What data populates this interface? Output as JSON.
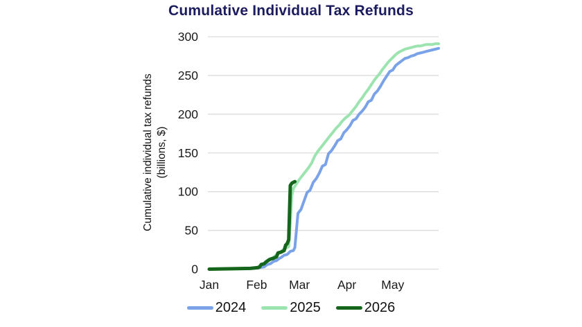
{
  "title": "Cumulative Individual Tax Refunds",
  "colors": {
    "title": "#1b1b5e",
    "grid": "#dcdcdc",
    "axis_text": "#1a1a1a",
    "series_2024": "#7aa2e9",
    "series_2025": "#9be3af",
    "series_2026": "#15661c",
    "background": "#ffffff"
  },
  "y_axis": {
    "label_line1": "Cumulative individual tax refunds",
    "label_line2": "(billions, $)",
    "tick_labels": [
      "0",
      "50",
      "100",
      "150",
      "200",
      "250",
      "300"
    ]
  },
  "x_axis": {
    "tick_labels": [
      "Jan",
      "Feb",
      "Mar",
      "Apr",
      "May"
    ]
  },
  "legend": {
    "items": [
      {
        "label": "2024",
        "color": "#7aa2e9"
      },
      {
        "label": "2025",
        "color": "#9be3af"
      },
      {
        "label": "2026",
        "color": "#15661c"
      }
    ]
  },
  "chart_data": {
    "type": "line",
    "title": "Cumulative Individual Tax Refunds",
    "ylabel": "Cumulative individual tax refunds (billions, $)",
    "xlabel": "",
    "ylim": [
      0,
      300
    ],
    "y_ticks": [
      0,
      50,
      100,
      150,
      200,
      250,
      300
    ],
    "x_unit": "day_of_year",
    "x_total_days": 151,
    "x_ticks": [
      {
        "label": "Jan",
        "day": 1
      },
      {
        "label": "Feb",
        "day": 32
      },
      {
        "label": "Mar",
        "day": 60
      },
      {
        "label": "Apr",
        "day": 91
      },
      {
        "label": "May",
        "day": 121
      }
    ],
    "grid": true,
    "legend_position": "bottom",
    "series": [
      {
        "name": "2024",
        "color": "#7aa2e9",
        "stroke_width": 4,
        "points": [
          [
            1,
            0
          ],
          [
            30,
            1
          ],
          [
            34,
            2
          ],
          [
            37,
            3
          ],
          [
            39,
            6
          ],
          [
            41,
            7
          ],
          [
            43,
            10
          ],
          [
            45,
            11
          ],
          [
            47,
            14
          ],
          [
            48,
            15
          ],
          [
            50,
            18
          ],
          [
            52,
            19
          ],
          [
            54,
            23
          ],
          [
            56,
            24
          ],
          [
            57,
            28
          ],
          [
            58,
            50
          ],
          [
            59,
            72
          ],
          [
            61,
            77
          ],
          [
            63,
            88
          ],
          [
            65,
            99
          ],
          [
            67,
            102
          ],
          [
            69,
            112
          ],
          [
            71,
            117
          ],
          [
            73,
            124
          ],
          [
            75,
            133
          ],
          [
            77,
            135
          ],
          [
            79,
            149
          ],
          [
            81,
            153
          ],
          [
            83,
            159
          ],
          [
            85,
            166
          ],
          [
            87,
            168
          ],
          [
            89,
            176
          ],
          [
            91,
            180
          ],
          [
            93,
            185
          ],
          [
            95,
            192
          ],
          [
            97,
            194
          ],
          [
            99,
            200
          ],
          [
            101,
            204
          ],
          [
            103,
            209
          ],
          [
            105,
            216
          ],
          [
            107,
            218
          ],
          [
            109,
            226
          ],
          [
            111,
            230
          ],
          [
            113,
            236
          ],
          [
            115,
            243
          ],
          [
            117,
            249
          ],
          [
            119,
            255
          ],
          [
            121,
            257
          ],
          [
            123,
            263
          ],
          [
            125,
            266
          ],
          [
            127,
            269
          ],
          [
            129,
            272
          ],
          [
            131,
            273
          ],
          [
            133,
            275
          ],
          [
            135,
            276
          ],
          [
            137,
            278
          ],
          [
            139,
            279
          ],
          [
            141,
            280
          ],
          [
            143,
            281
          ],
          [
            145,
            282
          ],
          [
            147,
            283
          ],
          [
            149,
            284
          ],
          [
            151,
            285
          ]
        ]
      },
      {
        "name": "2025",
        "color": "#9be3af",
        "stroke_width": 4,
        "points": [
          [
            1,
            0
          ],
          [
            28,
            1
          ],
          [
            32,
            2
          ],
          [
            34,
            4
          ],
          [
            36,
            6
          ],
          [
            38,
            9
          ],
          [
            40,
            11
          ],
          [
            42,
            14
          ],
          [
            44,
            17
          ],
          [
            46,
            20
          ],
          [
            48,
            23
          ],
          [
            50,
            26
          ],
          [
            52,
            28
          ],
          [
            53,
            29
          ],
          [
            54,
            60
          ],
          [
            55,
            95
          ],
          [
            56,
            104
          ],
          [
            58,
            110
          ],
          [
            60,
            116
          ],
          [
            62,
            121
          ],
          [
            64,
            126
          ],
          [
            66,
            131
          ],
          [
            68,
            137
          ],
          [
            70,
            146
          ],
          [
            72,
            152
          ],
          [
            74,
            157
          ],
          [
            76,
            162
          ],
          [
            78,
            167
          ],
          [
            80,
            172
          ],
          [
            82,
            177
          ],
          [
            84,
            182
          ],
          [
            86,
            186
          ],
          [
            88,
            191
          ],
          [
            90,
            195
          ],
          [
            92,
            198
          ],
          [
            93,
            200
          ],
          [
            95,
            205
          ],
          [
            97,
            210
          ],
          [
            99,
            216
          ],
          [
            101,
            221
          ],
          [
            103,
            227
          ],
          [
            105,
            232
          ],
          [
            107,
            238
          ],
          [
            109,
            244
          ],
          [
            111,
            249
          ],
          [
            112,
            251
          ],
          [
            114,
            257
          ],
          [
            116,
            262
          ],
          [
            118,
            267
          ],
          [
            120,
            271
          ],
          [
            121,
            273
          ],
          [
            123,
            277
          ],
          [
            125,
            280
          ],
          [
            127,
            282
          ],
          [
            129,
            284
          ],
          [
            131,
            285
          ],
          [
            133,
            286
          ],
          [
            135,
            287
          ],
          [
            137,
            288
          ],
          [
            139,
            288
          ],
          [
            141,
            289
          ],
          [
            143,
            290
          ],
          [
            145,
            290
          ],
          [
            147,
            290
          ],
          [
            149,
            291
          ],
          [
            151,
            291
          ]
        ]
      },
      {
        "name": "2026",
        "color": "#15661c",
        "stroke_width": 5,
        "points": [
          [
            1,
            0
          ],
          [
            28,
            1
          ],
          [
            33,
            2
          ],
          [
            34,
            3
          ],
          [
            35,
            6
          ],
          [
            37,
            7
          ],
          [
            38,
            9
          ],
          [
            40,
            12
          ],
          [
            41,
            13
          ],
          [
            43,
            14
          ],
          [
            45,
            16
          ],
          [
            46,
            21
          ],
          [
            48,
            22
          ],
          [
            50,
            24
          ],
          [
            51,
            31
          ],
          [
            52,
            33
          ],
          [
            53,
            38
          ],
          [
            53.5,
            75
          ],
          [
            54,
            108
          ],
          [
            55,
            111
          ],
          [
            56,
            112
          ],
          [
            57,
            113
          ]
        ]
      }
    ]
  }
}
